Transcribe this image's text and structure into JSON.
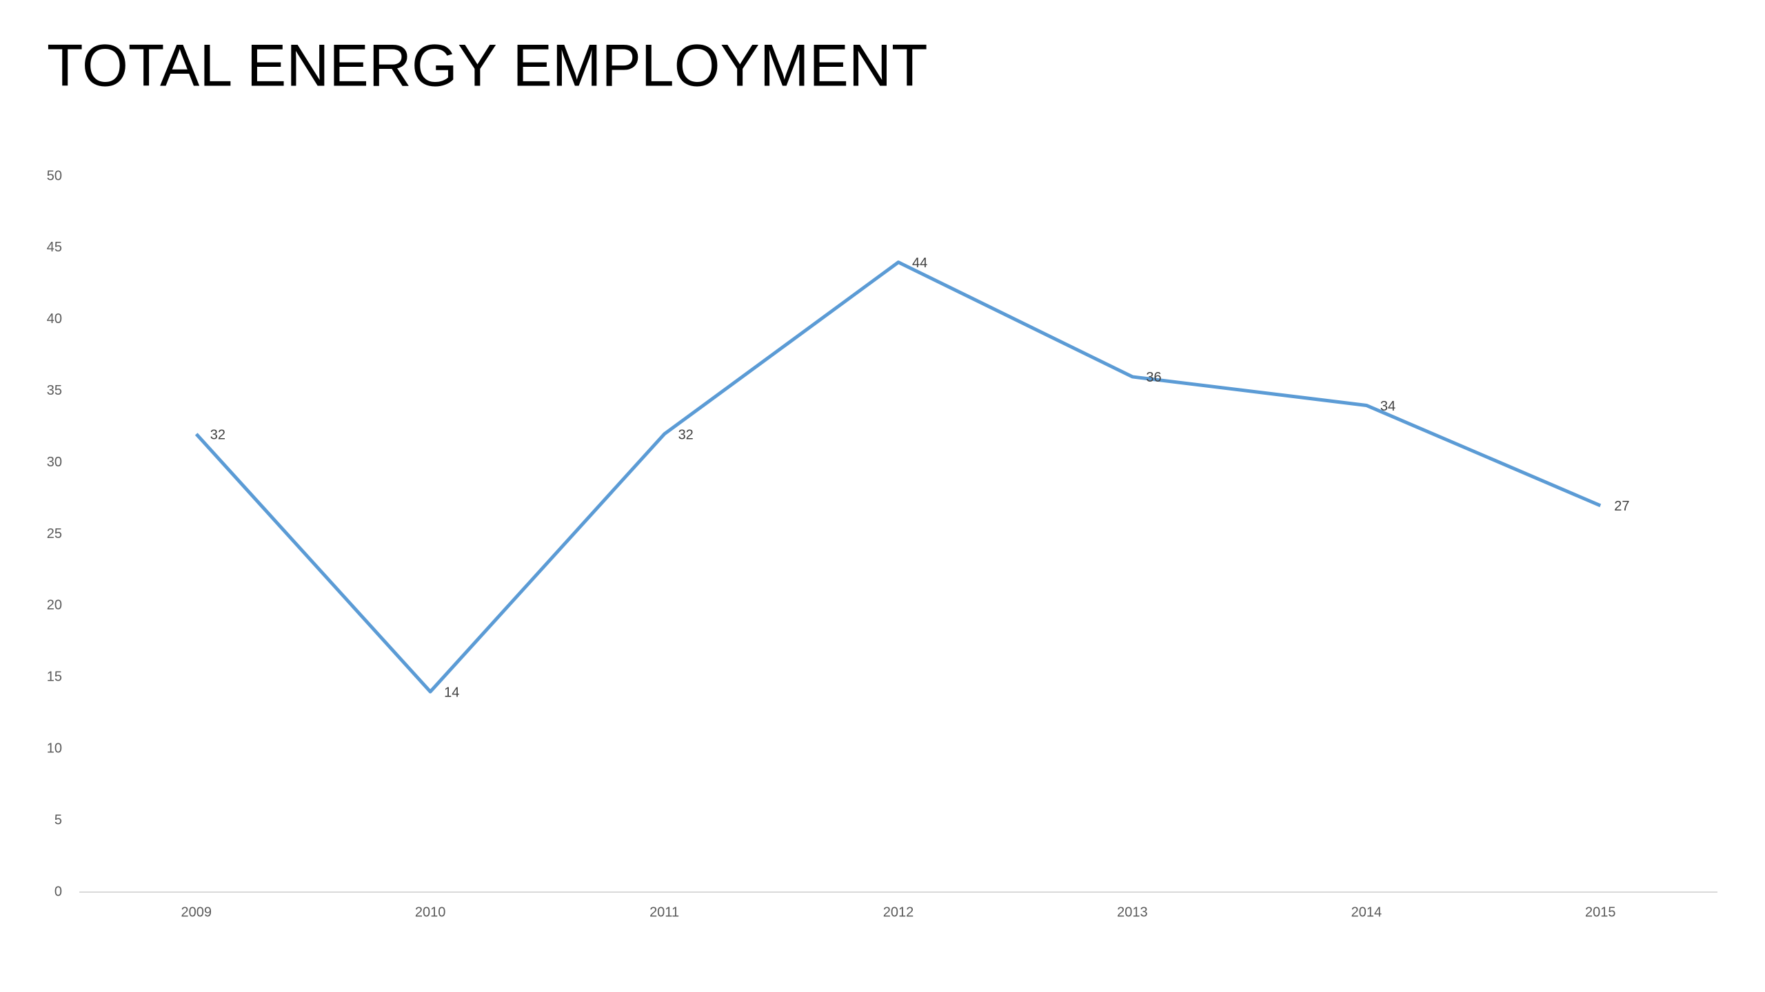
{
  "chart_data": {
    "type": "line",
    "title": "TOTAL ENERGY EMPLOYMENT",
    "categories": [
      "2009",
      "2010",
      "2011",
      "2012",
      "2013",
      "2014",
      "2015"
    ],
    "series": [
      {
        "name": "Total Energy Employment",
        "color": "#5b9bd5",
        "values": [
          32,
          14,
          32,
          44,
          36,
          34,
          27
        ]
      }
    ],
    "ylim": [
      0,
      50
    ],
    "yticks": [
      0,
      5,
      10,
      15,
      20,
      25,
      30,
      35,
      40,
      45,
      50
    ],
    "grid": false,
    "data_labels": true,
    "legend": false
  }
}
